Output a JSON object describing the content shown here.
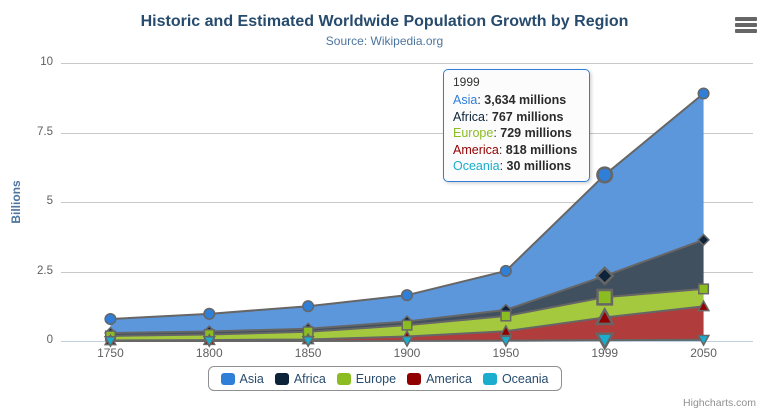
{
  "chart_data": {
    "type": "area",
    "stacking": "normal",
    "title": "Historic and Estimated Worldwide Population Growth by Region",
    "subtitle": "Source: Wikipedia.org",
    "categories": [
      "1750",
      "1800",
      "1850",
      "1900",
      "1950",
      "1999",
      "2050"
    ],
    "series": [
      {
        "name": "Asia",
        "color": "#2f7ed8",
        "fill": "#5c97dc",
        "marker": "circle",
        "values": [
          502,
          635,
          809,
          947,
          1402,
          3634,
          5268
        ]
      },
      {
        "name": "Africa",
        "color": "#0d233a",
        "fill": "#41505f",
        "marker": "diamond",
        "values": [
          106,
          107,
          111,
          133,
          221,
          767,
          1766
        ]
      },
      {
        "name": "Europe",
        "color": "#8bbc21",
        "fill": "#a4c93e",
        "marker": "square",
        "values": [
          163,
          203,
          276,
          408,
          547,
          729,
          628
        ]
      },
      {
        "name": "America",
        "color": "#910000",
        "fill": "#b03c3c",
        "marker": "triangle",
        "values": [
          18,
          31,
          54,
          156,
          339,
          818,
          1201
        ]
      },
      {
        "name": "Oceania",
        "color": "#1aadce",
        "fill": "#31b2d5",
        "marker": "triangle-down",
        "values": [
          2,
          2,
          2,
          6,
          13,
          30,
          46
        ]
      }
    ],
    "values_unit": "millions",
    "xlabel": "",
    "ylabel": "Billions",
    "ylim": [
      0,
      10
    ],
    "yticks": [
      0,
      2.5,
      5,
      7.5,
      10
    ],
    "grid": true,
    "legend_position": "bottom",
    "hover": {
      "category": "1999",
      "index": 5
    },
    "line_color": "#666666",
    "grid_color": "#c8c8c8",
    "axis_line_color": "#c0d0e0"
  },
  "tooltip": {
    "header": "1999",
    "rows": [
      {
        "label": "Asia",
        "value": "3,634 millions",
        "color": "#2f7ed8"
      },
      {
        "label": "Africa",
        "value": "767 millions",
        "color": "#0d233a"
      },
      {
        "label": "Europe",
        "value": "729 millions",
        "color": "#8bbc21"
      },
      {
        "label": "America",
        "value": "818 millions",
        "color": "#910000"
      },
      {
        "label": "Oceania",
        "value": "30 millions",
        "color": "#1aadce"
      }
    ]
  },
  "export_menu": {
    "icon": "burger-icon"
  },
  "credits": {
    "label": "Highcharts.com"
  }
}
